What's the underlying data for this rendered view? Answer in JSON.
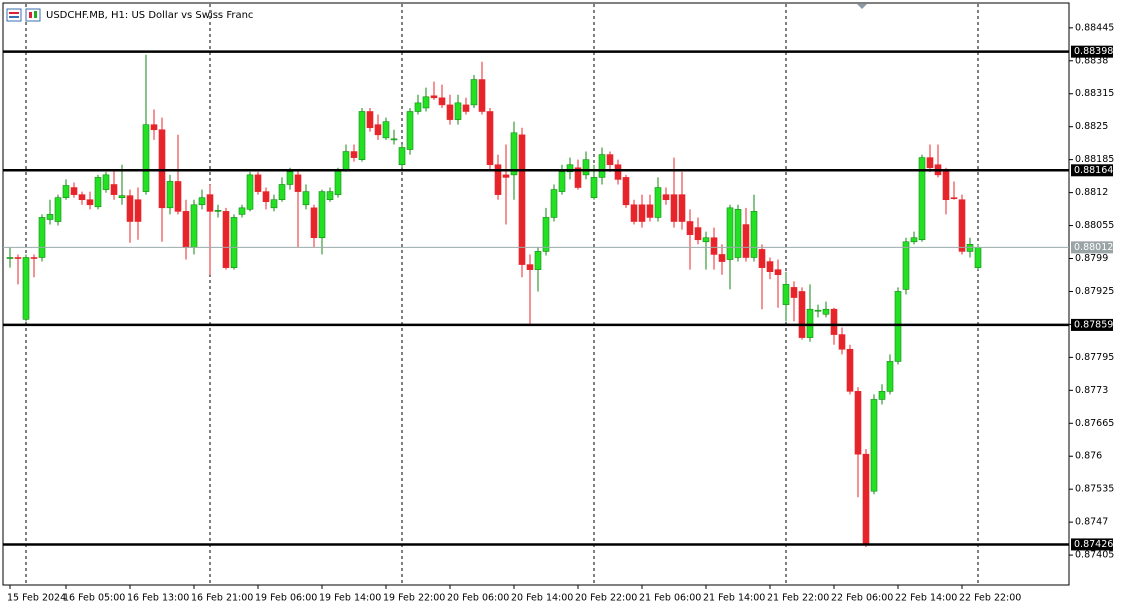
{
  "chart_data": {
    "type": "candlestick",
    "title": "USDCHF.MB, H1:  US Dollar vs Swiss Franc",
    "categories": [
      "15 Feb 2024",
      null,
      null,
      null,
      null,
      null,
      null,
      "16 Feb 05:00",
      null,
      null,
      null,
      null,
      null,
      null,
      null,
      "16 Feb 13:00",
      null,
      null,
      null,
      null,
      null,
      null,
      null,
      "16 Feb 21:00",
      null,
      null,
      null,
      null,
      null,
      null,
      null,
      "19 Feb 06:00",
      null,
      null,
      null,
      null,
      null,
      null,
      null,
      "19 Feb 14:00",
      null,
      null,
      null,
      null,
      null,
      null,
      null,
      "19 Feb 22:00",
      null,
      null,
      null,
      null,
      null,
      null,
      null,
      "20 Feb 06:00",
      null,
      null,
      null,
      null,
      null,
      null,
      null,
      "20 Feb 14:00",
      null,
      null,
      null,
      null,
      null,
      null,
      null,
      "20 Feb 22:00",
      null,
      null,
      null,
      null,
      null,
      null,
      null,
      "21 Feb 06:00",
      null,
      null,
      null,
      null,
      null,
      null,
      null,
      "21 Feb 14:00",
      null,
      null,
      null,
      null,
      null,
      null,
      null,
      "21 Feb 22:00",
      null,
      null,
      null,
      null,
      null,
      null,
      null,
      "22 Feb 06:00",
      null,
      null,
      null,
      null,
      null,
      null,
      null,
      "22 Feb 14:00",
      null,
      null,
      null,
      null,
      null,
      null,
      null,
      "22 Feb 22:00",
      null,
      null
    ],
    "open": [
      0.87992,
      0.87992,
      0.8787,
      0.87992,
      0.87992,
      0.88067,
      0.88063,
      0.8811,
      0.8813,
      0.88116,
      0.88106,
      0.88092,
      0.88126,
      0.88136,
      0.8811,
      0.88114,
      0.88106,
      0.88122,
      0.88254,
      0.88244,
      0.8809,
      0.88142,
      0.88083,
      0.88012,
      0.88096,
      0.88116,
      0.88083,
      0.88083,
      0.87972,
      0.88077,
      0.88087,
      0.88155,
      0.88122,
      0.8809,
      0.88106,
      0.88136,
      0.88155,
      0.88096,
      0.8809,
      0.88031,
      0.88106,
      0.88116,
      0.88165,
      0.88201,
      0.88185,
      0.8828,
      0.88254,
      0.88228,
      0.88224,
      0.88175,
      0.88205,
      0.8828,
      0.88287,
      0.88311,
      0.88307,
      0.88293,
      0.88264,
      0.88293,
      0.88293,
      0.88343,
      0.8828,
      0.88175,
      0.88155,
      0.88155,
      0.88234,
      0.87978,
      0.87968,
      0.88004,
      0.88071,
      0.88122,
      0.88161,
      0.88169,
      0.88155,
      0.8811,
      0.8815,
      0.88195,
      0.88175,
      0.8815,
      0.88096,
      0.88096,
      0.88096,
      0.88071,
      0.88116,
      0.88116,
      0.88116,
      0.88063,
      0.88051,
      0.88023,
      0.88031,
      0.87998,
      0.87988,
      0.87992,
      0.88057,
      0.87992,
      0.88008,
      0.87984,
      0.87968,
      0.87899,
      0.87933,
      0.87925,
      0.87834,
      0.87886,
      0.8788,
      0.8789,
      0.8784,
      0.87811,
      0.87728,
      0.87604,
      0.87531,
      0.87712,
      0.87728,
      0.87787,
      0.87929,
      0.88023,
      0.88027,
      0.88189,
      0.88175,
      0.88161,
      0.8811,
      0.88106,
      0.88004,
      0.87972
    ],
    "high": [
      0.88012,
      0.87998,
      0.87998,
      0.87998,
      0.88077,
      0.88106,
      0.88116,
      0.88146,
      0.8814,
      0.88122,
      0.88122,
      0.88155,
      0.88161,
      0.88165,
      0.88175,
      0.88126,
      0.8813,
      0.88392,
      0.88284,
      0.88268,
      0.88155,
      0.88234,
      0.88106,
      0.88106,
      0.88126,
      0.88136,
      0.88096,
      0.8809,
      0.88077,
      0.88096,
      0.88161,
      0.88161,
      0.8813,
      0.88116,
      0.8815,
      0.88169,
      0.88165,
      0.88136,
      0.88096,
      0.88126,
      0.8813,
      0.88169,
      0.88215,
      0.88215,
      0.88287,
      0.88287,
      0.88274,
      0.88268,
      0.88244,
      0.88215,
      0.88287,
      0.88313,
      0.88327,
      0.88339,
      0.88333,
      0.88313,
      0.88313,
      0.88307,
      0.88352,
      0.88378,
      0.88287,
      0.88195,
      0.88215,
      0.8826,
      0.88248,
      0.87998,
      0.88012,
      0.8809,
      0.88136,
      0.88175,
      0.88189,
      0.88185,
      0.88201,
      0.88175,
      0.88209,
      0.88201,
      0.88185,
      0.88155,
      0.88106,
      0.88116,
      0.88116,
      0.8815,
      0.8813,
      0.88189,
      0.88161,
      0.88087,
      0.88071,
      0.88043,
      0.88051,
      0.88018,
      0.88096,
      0.88096,
      0.8809,
      0.88116,
      0.88018,
      0.87992,
      0.87988,
      0.87964,
      0.87945,
      0.87933,
      0.87939,
      0.87899,
      0.87905,
      0.87893,
      0.87854,
      0.8782,
      0.87736,
      0.87614,
      0.87722,
      0.87742,
      0.87801,
      0.87933,
      0.88031,
      0.88043,
      0.88195,
      0.88215,
      0.88215,
      0.88169,
      0.88142,
      0.88116,
      0.88031,
      0.88018
    ],
    "low": [
      0.87972,
      0.87939,
      0.87866,
      0.87953,
      0.87984,
      0.88057,
      0.88055,
      0.88106,
      0.8811,
      0.88096,
      0.88087,
      0.88087,
      0.8812,
      0.88106,
      0.88096,
      0.88021,
      0.88027,
      0.88116,
      0.88224,
      0.88023,
      0.88077,
      0.88077,
      0.87988,
      0.87998,
      0.88087,
      0.87958,
      0.88071,
      0.87968,
      0.87968,
      0.88071,
      0.88083,
      0.88116,
      0.88087,
      0.88083,
      0.88102,
      0.88126,
      0.88012,
      0.88087,
      0.88012,
      0.87998,
      0.88102,
      0.8811,
      0.88161,
      0.88181,
      0.88181,
      0.8824,
      0.88224,
      0.88224,
      0.88215,
      0.88169,
      0.88195,
      0.88274,
      0.8828,
      0.88303,
      0.88287,
      0.88254,
      0.88254,
      0.88274,
      0.88287,
      0.88274,
      0.88165,
      0.88106,
      0.88057,
      0.88106,
      0.87953,
      0.8786,
      0.87925,
      0.87996,
      0.88063,
      0.88116,
      0.88146,
      0.88126,
      0.88146,
      0.88106,
      0.88136,
      0.88161,
      0.88136,
      0.8809,
      0.88057,
      0.88051,
      0.88063,
      0.88063,
      0.88096,
      0.88051,
      0.88047,
      0.87968,
      0.88018,
      0.87968,
      0.87968,
      0.87958,
      0.87929,
      0.87984,
      0.87984,
      0.87984,
      0.8789,
      0.87949,
      0.87893,
      0.87866,
      0.87866,
      0.8783,
      0.87826,
      0.87874,
      0.87874,
      0.8782,
      0.87801,
      0.87722,
      0.87519,
      0.87421,
      0.87525,
      0.87702,
      0.87722,
      0.87781,
      0.87919,
      0.88018,
      0.88023,
      0.88161,
      0.8815,
      0.88077,
      0.88106,
      0.87998,
      0.87992,
      0.87968
    ],
    "close": [
      0.87992,
      0.8799,
      0.87992,
      0.8799,
      0.88071,
      0.88077,
      0.8811,
      0.88134,
      0.88116,
      0.88106,
      0.88096,
      0.8815,
      0.88155,
      0.88116,
      0.88114,
      0.88063,
      0.88063,
      0.88254,
      0.88244,
      0.8809,
      0.88142,
      0.88083,
      0.88012,
      0.88096,
      0.8811,
      0.88083,
      0.88085,
      0.87972,
      0.88071,
      0.8809,
      0.88155,
      0.88122,
      0.88102,
      0.88106,
      0.88136,
      0.88161,
      0.88122,
      0.88122,
      0.88031,
      0.88122,
      0.88122,
      0.88165,
      0.88201,
      0.88189,
      0.8828,
      0.88248,
      0.88234,
      0.8826,
      0.88226,
      0.88209,
      0.8828,
      0.88297,
      0.88309,
      0.88307,
      0.88293,
      0.88264,
      0.88297,
      0.8828,
      0.88343,
      0.8828,
      0.88175,
      0.88116,
      0.8815,
      0.88238,
      0.87978,
      0.87968,
      0.88004,
      0.88071,
      0.88126,
      0.88161,
      0.88175,
      0.8813,
      0.88185,
      0.8815,
      0.88195,
      0.88175,
      0.88146,
      0.88096,
      0.88063,
      0.88063,
      0.88071,
      0.8813,
      0.88106,
      0.88063,
      0.88063,
      0.88037,
      0.88027,
      0.88031,
      0.87998,
      0.87984,
      0.8809,
      0.88087,
      0.87992,
      0.88083,
      0.87972,
      0.87964,
      0.87958,
      0.87939,
      0.87913,
      0.87834,
      0.8789,
      0.87888,
      0.8789,
      0.8784,
      0.87811,
      0.87728,
      0.87604,
      0.87426,
      0.87712,
      0.87728,
      0.87787,
      0.87925,
      0.88023,
      0.88031,
      0.88189,
      0.88169,
      0.88155,
      0.88106,
      0.88108,
      0.88004,
      0.88018,
      0.88012
    ],
    "up_color": "#22e022",
    "down_color": "#e8242b",
    "ylim": [
      0.87346,
      0.88494
    ],
    "yticks": [
      0.88445,
      0.8838,
      0.88315,
      0.8825,
      0.88185,
      0.8812,
      0.88055,
      0.8799,
      0.87925,
      0.8786,
      0.87795,
      0.8773,
      0.87665,
      0.876,
      0.87535,
      0.8747,
      0.87405
    ],
    "levels": [
      0.88398,
      0.88164,
      0.87859,
      0.87426
    ],
    "current_price": 0.88012
  }
}
